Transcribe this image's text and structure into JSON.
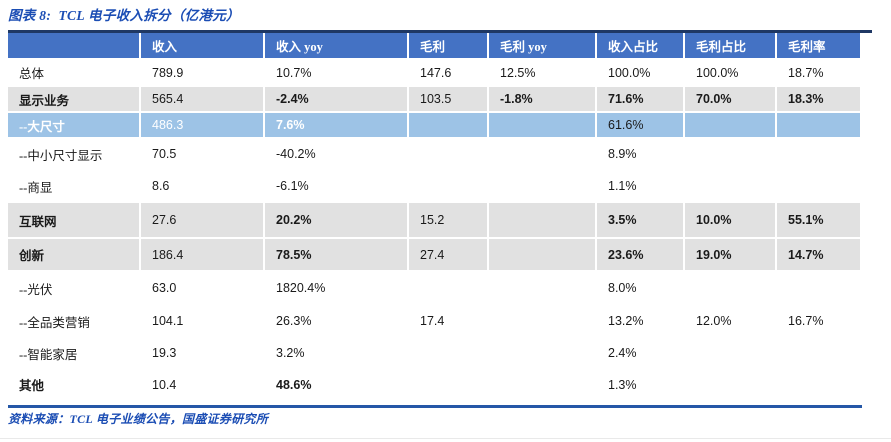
{
  "title": "图表 8:  TCL 电子收入拆分（亿港元）",
  "source": "资料来源：TCL 电子业绩公告，国盛证券研究所",
  "colors": {
    "header_bg": "#4472C4",
    "highlight_row_bg": "#9DC3E6",
    "band_row_bg": "#E1E1E1",
    "accent_text": "#1B4DB4",
    "top_rule": "#1F3864",
    "source_rule": "#2557A7"
  },
  "chart_data": {
    "type": "table",
    "title": "图表 8: TCL 电子收入拆分（亿港元）",
    "source": "资料来源：TCL 电子业绩公告，国盛证券研究所",
    "columns": [
      "",
      "收入",
      "收入 yoy",
      "毛利",
      "毛利 yoy",
      "收入占比",
      "毛利占比",
      "毛利率"
    ],
    "rows": [
      {
        "label": "总体",
        "style": "plain",
        "label_bold": false,
        "cells": [
          "789.9",
          "10.7%",
          "147.6",
          "12.5%",
          "100.0%",
          "100.0%",
          "18.7%"
        ],
        "bold": []
      },
      {
        "label": "显示业务",
        "style": "gray",
        "label_bold": true,
        "cells": [
          "565.4",
          "-2.4%",
          "103.5",
          "-1.8%",
          "71.6%",
          "70.0%",
          "18.3%"
        ],
        "bold": [
          1,
          3,
          4,
          5,
          6
        ]
      },
      {
        "label": "--大尺寸",
        "style": "blue",
        "label_bold": true,
        "cells": [
          "486.3",
          "7.6%",
          "",
          "",
          "61.6%",
          "",
          ""
        ],
        "bold": [
          1
        ],
        "black_cells": [
          4
        ]
      },
      {
        "label": "--中小尺寸显示",
        "style": "plain",
        "label_bold": false,
        "cells": [
          "70.5",
          "-40.2%",
          "",
          "",
          "8.9%",
          "",
          ""
        ],
        "bold": []
      },
      {
        "label": "--商显",
        "style": "plain",
        "label_bold": false,
        "cells": [
          "8.6",
          "-6.1%",
          "",
          "",
          "1.1%",
          "",
          ""
        ],
        "bold": []
      },
      {
        "label": "互联网",
        "style": "gray",
        "label_bold": true,
        "cells": [
          "27.6",
          "20.2%",
          "15.2",
          "",
          "3.5%",
          "10.0%",
          "55.1%"
        ],
        "bold": [
          1,
          4,
          5,
          6
        ]
      },
      {
        "label": "创新",
        "style": "gray",
        "label_bold": true,
        "cells": [
          "186.4",
          "78.5%",
          "27.4",
          "",
          "23.6%",
          "19.0%",
          "14.7%"
        ],
        "bold": [
          1,
          4,
          5,
          6
        ]
      },
      {
        "label": "--光伏",
        "style": "plain",
        "label_bold": false,
        "cells": [
          "63.0",
          "1820.4%",
          "",
          "",
          "8.0%",
          "",
          ""
        ],
        "bold": []
      },
      {
        "label": "--全品类营销",
        "style": "plain",
        "label_bold": false,
        "cells": [
          "104.1",
          "26.3%",
          "17.4",
          "",
          "13.2%",
          "12.0%",
          "16.7%"
        ],
        "bold": []
      },
      {
        "label": "--智能家居",
        "style": "plain",
        "label_bold": false,
        "cells": [
          "19.3",
          "3.2%",
          "",
          "",
          "2.4%",
          "",
          ""
        ],
        "bold": []
      },
      {
        "label": "其他",
        "style": "plain",
        "label_bold": true,
        "cells": [
          "10.4",
          "48.6%",
          "",
          "",
          "1.3%",
          "",
          ""
        ],
        "bold": [
          1
        ]
      }
    ]
  }
}
